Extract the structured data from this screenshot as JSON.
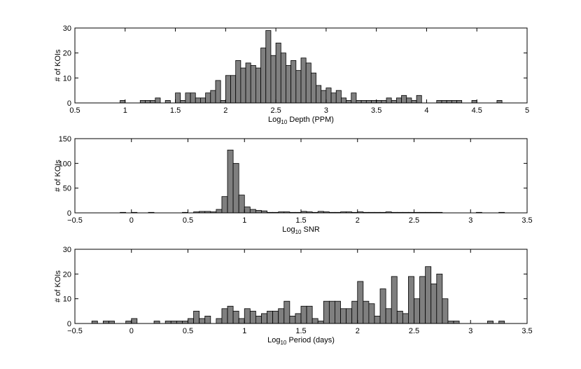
{
  "chart_data": [
    {
      "type": "bar",
      "xlabel_base": "Log",
      "xlabel_sub": "10",
      "xlabel_rest": " Depth (PPM)",
      "ylabel": "# of KOIs",
      "xlim": [
        0.5,
        5
      ],
      "ylim": [
        0,
        30
      ],
      "xticks": [
        "0.5",
        "1",
        "1.5",
        "2",
        "2.5",
        "3",
        "3.5",
        "4",
        "4.5",
        "5"
      ],
      "xtick_values": [
        0.5,
        1,
        1.5,
        2,
        2.5,
        3,
        3.5,
        4,
        4.5,
        5
      ],
      "yticks": [
        "0",
        "10",
        "20",
        "30"
      ],
      "ytick_values": [
        0,
        10,
        20,
        30
      ],
      "bin_width": 0.05,
      "bins_left": [
        0.95,
        1.15,
        1.2,
        1.25,
        1.3,
        1.4,
        1.5,
        1.55,
        1.6,
        1.65,
        1.7,
        1.75,
        1.8,
        1.85,
        1.9,
        1.95,
        2.0,
        2.05,
        2.1,
        2.15,
        2.2,
        2.25,
        2.3,
        2.35,
        2.4,
        2.45,
        2.5,
        2.55,
        2.6,
        2.65,
        2.7,
        2.75,
        2.8,
        2.85,
        2.9,
        2.95,
        3.0,
        3.05,
        3.1,
        3.15,
        3.2,
        3.25,
        3.3,
        3.35,
        3.4,
        3.45,
        3.5,
        3.55,
        3.6,
        3.65,
        3.7,
        3.75,
        3.8,
        3.85,
        3.9,
        4.1,
        4.15,
        4.2,
        4.25,
        4.3,
        4.45,
        4.7
      ],
      "values": [
        1,
        1,
        1,
        1,
        2,
        1,
        4,
        1,
        4,
        4,
        2,
        2,
        4,
        5,
        9,
        1,
        11,
        11,
        17,
        14,
        16,
        15,
        14,
        22,
        29,
        19,
        24,
        20,
        15,
        17,
        13,
        18,
        16,
        12,
        7,
        5,
        6,
        4,
        5,
        2,
        1,
        4,
        1,
        1,
        1,
        1,
        1,
        1,
        2,
        1,
        2,
        3,
        2,
        1,
        3,
        1,
        1,
        1,
        1,
        1,
        1,
        1
      ]
    },
    {
      "type": "bar",
      "xlabel_base": "Log",
      "xlabel_sub": "10",
      "xlabel_rest": " SNR",
      "ylabel": "# of KOIs",
      "xlim": [
        -0.5,
        3.5
      ],
      "ylim": [
        0,
        150
      ],
      "xticks": [
        "−0.5",
        "0",
        "0.5",
        "1",
        "1.5",
        "2",
        "2.5",
        "3",
        "3.5"
      ],
      "xtick_values": [
        -0.5,
        0,
        0.5,
        1,
        1.5,
        2,
        2.5,
        3,
        3.5
      ],
      "yticks": [
        "0",
        "50",
        "100",
        "150"
      ],
      "ytick_values": [
        0,
        50,
        100,
        150
      ],
      "bin_width": 0.05,
      "bins_left": [
        -0.1,
        0.0,
        0.15,
        0.45,
        0.55,
        0.6,
        0.65,
        0.7,
        0.75,
        0.8,
        0.85,
        0.9,
        0.95,
        1.0,
        1.05,
        1.1,
        1.15,
        1.2,
        1.25,
        1.3,
        1.35,
        1.4,
        1.45,
        1.5,
        1.55,
        1.6,
        1.65,
        1.7,
        1.75,
        1.8,
        1.85,
        1.9,
        1.95,
        2.0,
        2.05,
        2.1,
        2.15,
        2.2,
        2.25,
        2.3,
        2.35,
        2.4,
        2.45,
        2.5,
        2.55,
        2.6,
        2.65,
        2.7,
        3.05,
        3.25
      ],
      "values": [
        1,
        1,
        1,
        1,
        2,
        3,
        3,
        2,
        7,
        33,
        127,
        100,
        36,
        12,
        7,
        5,
        4,
        1,
        1,
        2,
        2,
        1,
        1,
        3,
        2,
        1,
        3,
        2,
        1,
        1,
        2,
        2,
        1,
        2,
        1,
        1,
        1,
        1,
        2,
        1,
        1,
        1,
        1,
        1,
        1,
        1,
        1,
        1,
        1,
        1
      ]
    },
    {
      "type": "bar",
      "xlabel_base": "Log",
      "xlabel_sub": "10",
      "xlabel_rest": " Period (days)",
      "ylabel": "# of KOIs",
      "xlim": [
        -0.5,
        3.5
      ],
      "ylim": [
        0,
        30
      ],
      "xticks": [
        "−0.5",
        "0",
        "0.5",
        "1",
        "1.5",
        "2",
        "2.5",
        "3",
        "3.5"
      ],
      "xtick_values": [
        -0.5,
        0,
        0.5,
        1,
        1.5,
        2,
        2.5,
        3,
        3.5
      ],
      "yticks": [
        "0",
        "10",
        "20",
        "30"
      ],
      "ytick_values": [
        0,
        10,
        20,
        30
      ],
      "bin_width": 0.05,
      "bins_left": [
        -0.35,
        -0.25,
        -0.2,
        -0.05,
        0.0,
        0.2,
        0.3,
        0.35,
        0.4,
        0.45,
        0.5,
        0.55,
        0.6,
        0.65,
        0.75,
        0.8,
        0.85,
        0.9,
        0.95,
        1.0,
        1.05,
        1.1,
        1.15,
        1.2,
        1.25,
        1.3,
        1.35,
        1.4,
        1.45,
        1.5,
        1.55,
        1.6,
        1.65,
        1.7,
        1.75,
        1.8,
        1.85,
        1.9,
        1.95,
        2.0,
        2.05,
        2.1,
        2.15,
        2.2,
        2.25,
        2.3,
        2.35,
        2.4,
        2.45,
        2.5,
        2.55,
        2.6,
        2.65,
        2.7,
        2.75,
        2.8,
        2.85,
        3.15,
        3.25
      ],
      "values": [
        1,
        1,
        1,
        1,
        2,
        1,
        1,
        1,
        1,
        1,
        2,
        5,
        2,
        3,
        2,
        6,
        7,
        5,
        2,
        6,
        5,
        3,
        4,
        5,
        5,
        6,
        9,
        3,
        4,
        7,
        7,
        2,
        1,
        9,
        9,
        9,
        6,
        6,
        9,
        17,
        9,
        8,
        3,
        14,
        6,
        19,
        5,
        4,
        19,
        10,
        19,
        23,
        16,
        20,
        10,
        1,
        1,
        1,
        1
      ]
    }
  ]
}
